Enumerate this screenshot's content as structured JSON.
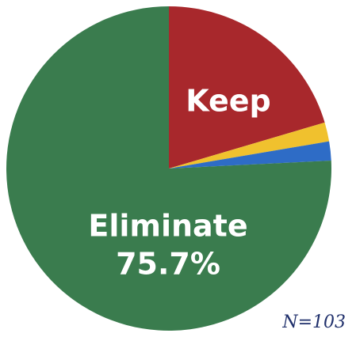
{
  "chart_data": {
    "type": "pie",
    "categories": [
      "Keep",
      null,
      null,
      "Eliminate"
    ],
    "values": [
      20.4,
      1.9,
      1.9,
      75.7
    ],
    "value_labels": [
      null,
      null,
      null,
      "75.7%"
    ],
    "colors": [
      "#a8282c",
      "#f0c12e",
      "#2e6cc6",
      "#3a7c4e"
    ],
    "annotation": "N=103"
  }
}
